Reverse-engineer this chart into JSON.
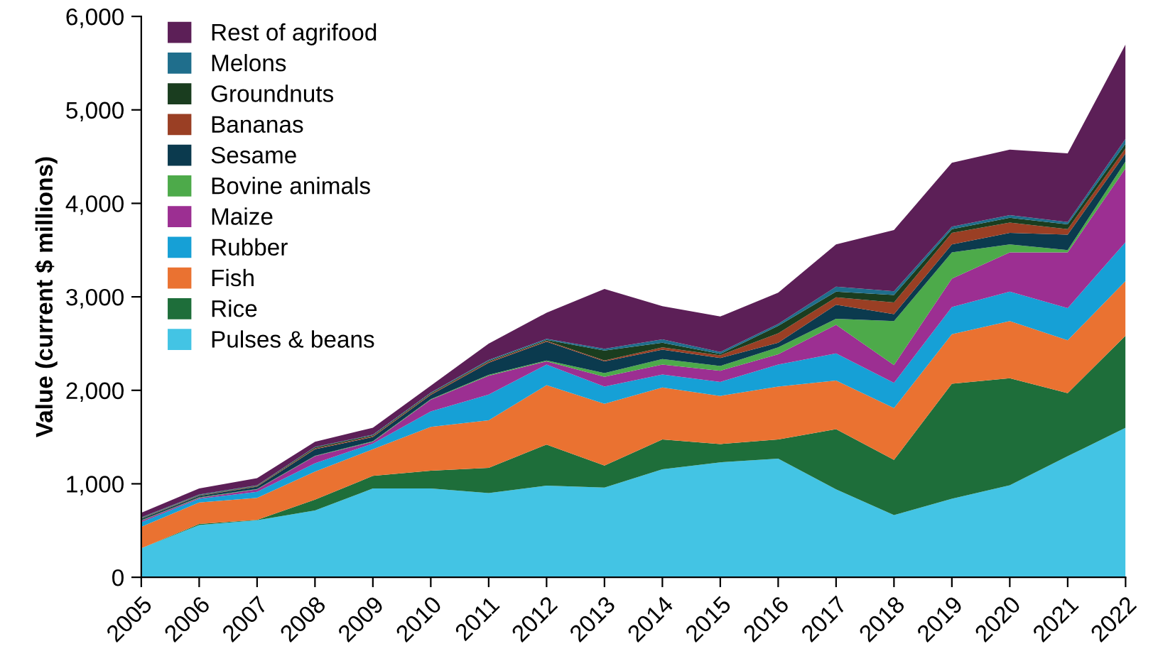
{
  "chart_data": {
    "type": "area",
    "stacked": true,
    "ylabel": "Value (current $ millions)",
    "x": [
      2005,
      2006,
      2007,
      2008,
      2009,
      2010,
      2011,
      2012,
      2013,
      2014,
      2015,
      2016,
      2017,
      2018,
      2019,
      2020,
      2021,
      2022
    ],
    "xlim": [
      2005,
      2022
    ],
    "xticks": [
      2005,
      2006,
      2007,
      2008,
      2009,
      2010,
      2011,
      2012,
      2013,
      2014,
      2015,
      2016,
      2017,
      2018,
      2019,
      2020,
      2021,
      2022
    ],
    "ylim": [
      0,
      6000
    ],
    "yticks": [
      {
        "value": 0,
        "label": "0"
      },
      {
        "value": 1000,
        "label": "1,000"
      },
      {
        "value": 2000,
        "label": "2,000"
      },
      {
        "value": 3000,
        "label": "3,000"
      },
      {
        "value": 4000,
        "label": "4,000"
      },
      {
        "value": 5000,
        "label": "5,000"
      },
      {
        "value": 6000,
        "label": "6,000"
      }
    ],
    "grid": false,
    "legend": "top left",
    "series": [
      {
        "name": "Pulses & beans",
        "color": "#43c4e4",
        "values": [
          310,
          560,
          610,
          715,
          950,
          950,
          900,
          980,
          960,
          1155,
          1230,
          1270,
          940,
          665,
          840,
          985,
          1295,
          1600
        ]
      },
      {
        "name": "Rice",
        "color": "#1e6e3a",
        "values": [
          0,
          10,
          5,
          115,
          135,
          190,
          270,
          440,
          235,
          320,
          195,
          205,
          645,
          590,
          1230,
          1145,
          675,
          985
        ]
      },
      {
        "name": "Fish",
        "color": "#ea7231",
        "values": [
          230,
          230,
          235,
          300,
          285,
          470,
          510,
          635,
          660,
          555,
          515,
          565,
          520,
          555,
          530,
          610,
          565,
          585
        ]
      },
      {
        "name": "Rubber",
        "color": "#16a0d6",
        "values": [
          50,
          40,
          65,
          90,
          60,
          165,
          275,
          220,
          185,
          140,
          150,
          235,
          290,
          270,
          290,
          315,
          345,
          415
        ]
      },
      {
        "name": "Maize",
        "color": "#9c2f92",
        "values": [
          15,
          10,
          25,
          75,
          20,
          125,
          200,
          35,
          105,
          105,
          120,
          110,
          305,
          190,
          305,
          420,
          595,
          790
        ]
      },
      {
        "name": "Bovine animals",
        "color": "#4daa4a",
        "values": [
          5,
          5,
          5,
          5,
          5,
          5,
          10,
          10,
          40,
          60,
          50,
          75,
          65,
          470,
          280,
          85,
          25,
          75
        ]
      },
      {
        "name": "Sesame",
        "color": "#0b3a4e",
        "values": [
          15,
          15,
          25,
          70,
          45,
          45,
          130,
          200,
          125,
          100,
          85,
          50,
          150,
          75,
          85,
          125,
          165,
          85
        ]
      },
      {
        "name": "Bananas",
        "color": "#9a3f24",
        "values": [
          5,
          5,
          5,
          10,
          10,
          10,
          10,
          10,
          10,
          25,
          30,
          100,
          80,
          125,
          125,
          110,
          60,
          55
        ]
      },
      {
        "name": "Groundnuts",
        "color": "#1a3d1f",
        "values": [
          5,
          5,
          5,
          10,
          10,
          10,
          10,
          10,
          105,
          50,
          15,
          80,
          60,
          80,
          40,
          50,
          50,
          50
        ]
      },
      {
        "name": "Melons",
        "color": "#1f6e8c",
        "values": [
          5,
          5,
          5,
          5,
          5,
          5,
          10,
          10,
          20,
          35,
          20,
          20,
          55,
          40,
          25,
          30,
          25,
          50
        ]
      },
      {
        "name": "Rest of agrifood",
        "color": "#5c1f57",
        "values": [
          50,
          65,
          75,
          55,
          75,
          75,
          175,
          280,
          640,
          355,
          380,
          335,
          450,
          655,
          685,
          700,
          735,
          1010
        ]
      }
    ]
  }
}
